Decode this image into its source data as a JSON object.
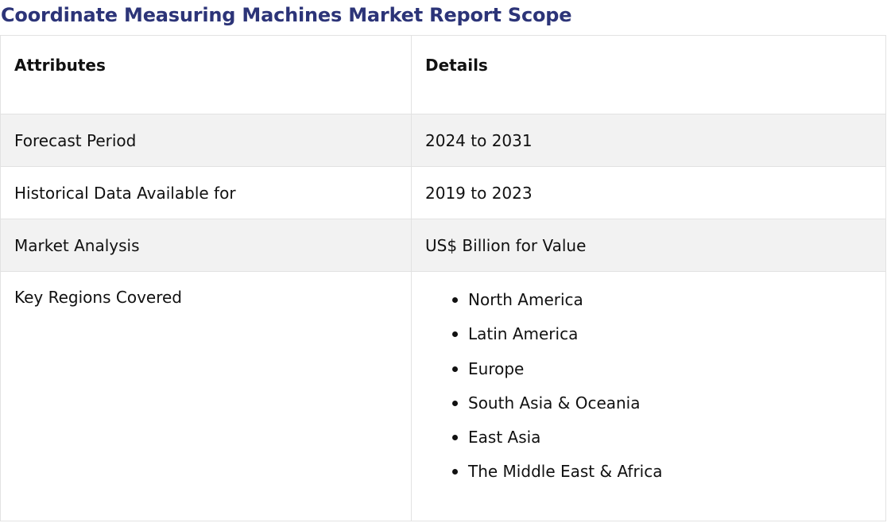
{
  "title": "Coordinate Measuring Machines Market Report Scope",
  "table": {
    "headers": {
      "attributes": "Attributes",
      "details": "Details"
    },
    "rows": [
      {
        "attribute": "Forecast Period",
        "detail": "2024 to 2031"
      },
      {
        "attribute": "Historical Data Available for",
        "detail": "2019 to 2023"
      },
      {
        "attribute": "Market Analysis",
        "detail": "US$ Billion for Value"
      }
    ],
    "regions": {
      "attribute": "Key Regions Covered",
      "items": [
        "North America",
        "Latin America",
        "Europe",
        "South Asia & Oceania",
        "East Asia",
        "The Middle East & Africa"
      ]
    }
  },
  "colors": {
    "title": "#2c3478",
    "shaded_row": "#f2f2f2",
    "border": "#e2e2e2"
  }
}
